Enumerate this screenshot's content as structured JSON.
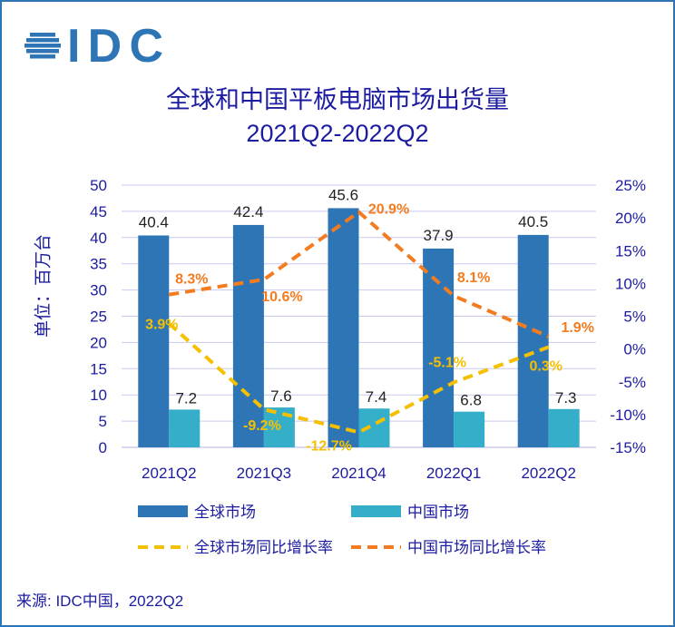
{
  "logo": "IDC",
  "title": "全球和中国平板电脑市场出货量",
  "subtitle": "2021Q2-2022Q2",
  "source": "来源: IDC中国，2022Q2",
  "colors": {
    "global": "#2e75b6",
    "china": "#35aec9",
    "global_rate": "#f5c000",
    "china_rate": "#f47c20",
    "text": "#1c1ca0",
    "grid": "#c9c9f0"
  },
  "chart_data": {
    "type": "bar+line",
    "ylabel": "单位：百万台",
    "ylim": [
      0,
      50
    ],
    "yticks": [
      "0",
      "5",
      "10",
      "15",
      "20",
      "25",
      "30",
      "35",
      "40",
      "45",
      "50"
    ],
    "y2lim": [
      -15,
      25
    ],
    "y2ticks": [
      "-15%",
      "-10%",
      "-5%",
      "0%",
      "5%",
      "10%",
      "15%",
      "20%",
      "25%"
    ],
    "grid": true,
    "legend": "bottom",
    "categories": [
      "2021Q2",
      "2021Q3",
      "2021Q4",
      "2022Q1",
      "2022Q2"
    ],
    "bars": [
      {
        "name": "全球市场",
        "values": [
          40.4,
          42.4,
          45.6,
          37.9,
          40.5
        ],
        "labels": [
          "40.4",
          "42.4",
          "45.6",
          "37.9",
          "40.5"
        ]
      },
      {
        "name": "中国市场",
        "values": [
          7.2,
          7.6,
          7.4,
          6.8,
          7.3
        ],
        "labels": [
          "7.2",
          "7.6",
          "7.4",
          "6.8",
          "7.3"
        ]
      }
    ],
    "lines": [
      {
        "name": "全球市场同比增长率",
        "axis": "right",
        "values": [
          3.9,
          -9.2,
          -12.7,
          -5.1,
          0.3
        ],
        "labels": [
          "3.9%",
          "-9.2%",
          "-12.7%",
          "-5.1%",
          "0.3%"
        ]
      },
      {
        "name": "中国市场同比增长率",
        "axis": "right",
        "values": [
          8.3,
          10.6,
          20.9,
          8.1,
          1.9
        ],
        "labels": [
          "8.3%",
          "10.6%",
          "20.9%",
          "8.1%",
          "1.9%"
        ]
      }
    ]
  }
}
